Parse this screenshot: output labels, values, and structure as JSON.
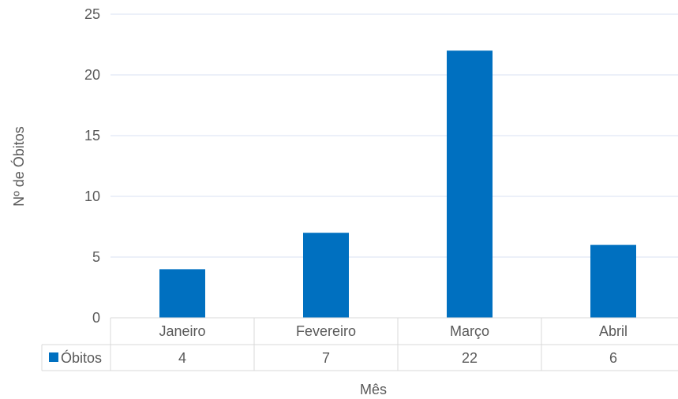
{
  "chart_data": {
    "type": "bar",
    "categories": [
      "Janeiro",
      "Fevereiro",
      "Março",
      "Abril"
    ],
    "series": [
      {
        "name": "Óbitos",
        "values": [
          4,
          7,
          22,
          6
        ],
        "color": "#0070C0"
      }
    ],
    "xlabel": "Mês",
    "ylabel": "Nº de Óbitos",
    "ylim": [
      0,
      25
    ],
    "yticks": [
      0,
      5,
      10,
      15,
      20,
      25
    ],
    "grid": true,
    "data_table": true,
    "legend": "data-table-left"
  }
}
